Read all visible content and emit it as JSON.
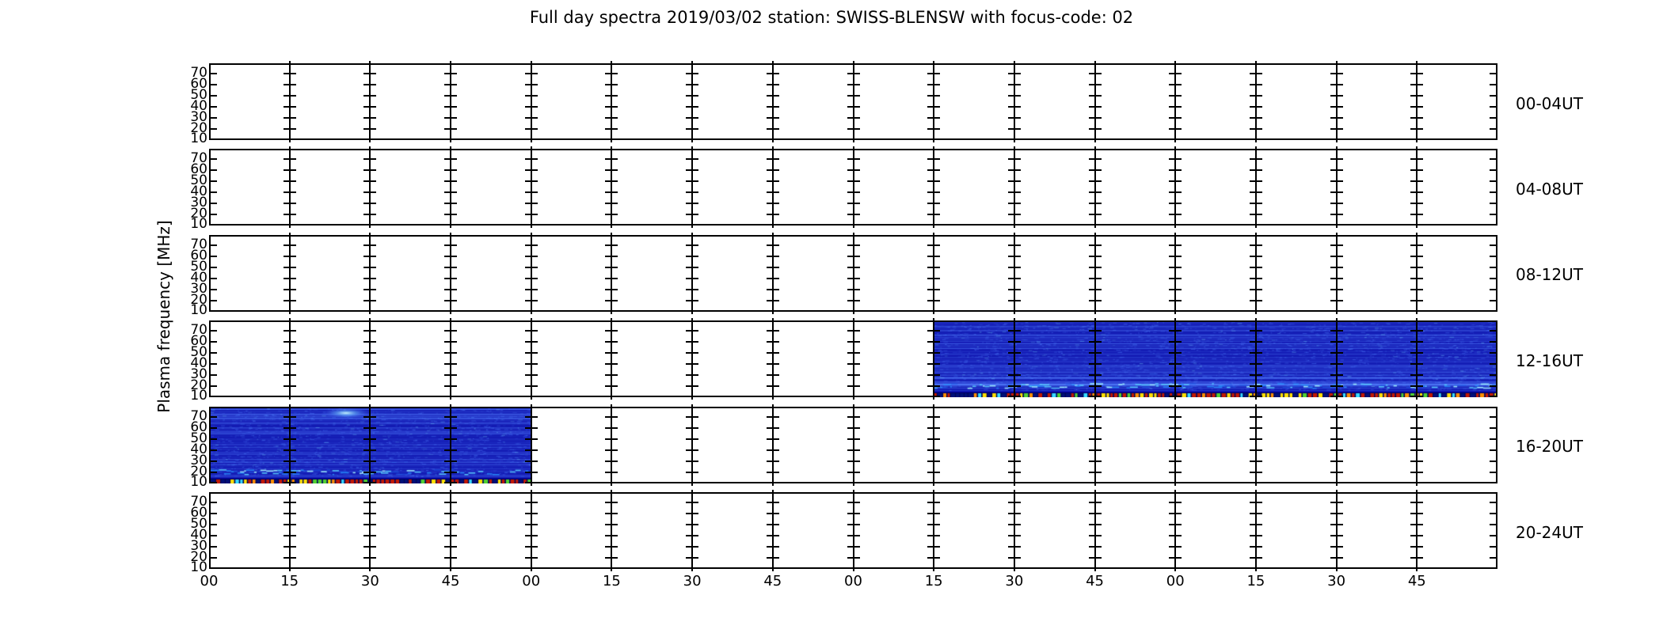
{
  "title": "Full day spectra 2019/03/02 station: SWISS-BLENSW with focus-code: 02",
  "y_axis_label": "Plasma frequency [MHz]",
  "rows": [
    {
      "label": "00-04UT",
      "has_data": false
    },
    {
      "label": "04-08UT",
      "has_data": false
    },
    {
      "label": "08-12UT",
      "has_data": false
    },
    {
      "label": "12-16UT",
      "has_data": true,
      "data_start_col": 9,
      "data_end_col": 16
    },
    {
      "label": "16-20UT",
      "has_data": true,
      "data_start_col": 0,
      "data_end_col": 4
    },
    {
      "label": "20-24UT",
      "has_data": false
    }
  ],
  "y_tick_labels": [
    "70",
    "60",
    "50",
    "40",
    "30",
    "20",
    "10"
  ],
  "x_tick_labels": [
    "00",
    "15",
    "30",
    "45",
    "00",
    "15",
    "30",
    "45",
    "00",
    "15",
    "30",
    "45",
    "00",
    "15",
    "30",
    "45"
  ],
  "chart_data": {
    "type": "heatmap",
    "title": "Full day spectra 2019/03/02 station: SWISS-BLENSW with focus-code: 02",
    "station": "SWISS-BLENSW",
    "date": "2019/03/02",
    "focus_code": "02",
    "layout": "6 stacked rows of 4 hours each; every row is built of 16 side-by-side 15-minute spectrogram panels separated by full-height vertical axis lines; only the bottom row carries minute labels",
    "row_labels": [
      "00-04UT",
      "04-08UT",
      "08-12UT",
      "12-16UT",
      "16-20UT",
      "20-24UT"
    ],
    "x_tick_minutes_per_hour": [
      "00",
      "15",
      "30",
      "45"
    ],
    "ylabel": "Plasma frequency [MHz]",
    "y_ticks_mhz": [
      70,
      60,
      50,
      40,
      30,
      20,
      10
    ],
    "y_range_mhz": [
      10,
      80
    ],
    "grid": "vertical panel dividers every 15 minutes, y-ticks repeated on every divider",
    "legend": "none",
    "data_coverage": [
      {
        "row": "12-16UT",
        "start": "14:15",
        "end": "16:00",
        "panels": "columns 9-15 of 16"
      },
      {
        "row": "16-20UT",
        "start": "16:00",
        "end": "17:00",
        "panels": "columns 0-3 of 16"
      }
    ],
    "empty_rows": [
      "00-04UT",
      "04-08UT",
      "08-12UT",
      "20-24UT"
    ],
    "spectrogram_appearance": {
      "base_color": "#0406a8",
      "streak_color": "#2a46e6",
      "bright_band_color": "#56d2ff",
      "bright_band_frequency_mhz": 20,
      "bottom_interference_dash_colors": [
        "#c41a00",
        "#ff9000",
        "#ffe000",
        "#38dcff",
        "#52d230",
        "#001078"
      ],
      "cloud_highlight": {
        "row": "16-20UT",
        "near": "~16:25 at ~65 MHz",
        "color": "#aee9ff"
      }
    }
  },
  "colors": {
    "background": "#ffffff",
    "axes": "#000000",
    "text": "#000000"
  }
}
